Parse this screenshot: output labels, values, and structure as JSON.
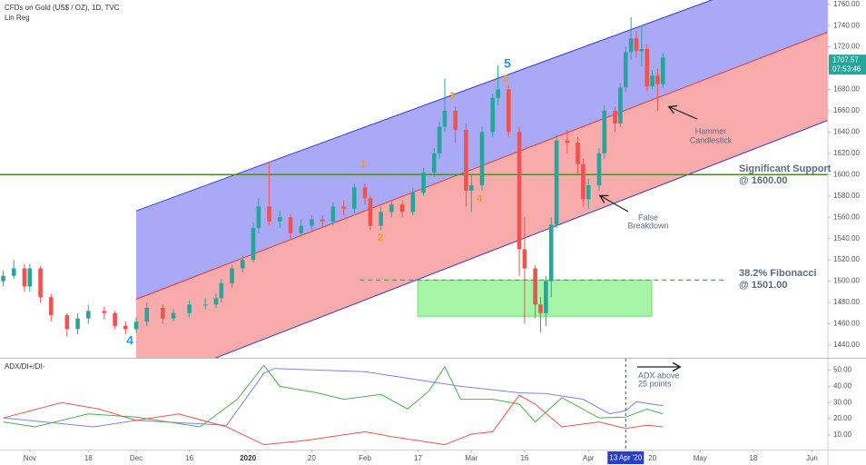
{
  "chart_data": [
    {
      "type": "candlestick",
      "title": "CFDs on Gold (US$ / OZ), 1D, TVC",
      "indicator": "Lin Reg",
      "xlim": [
        -5.6,
        150
      ],
      "ylim": [
        1428,
        1764
      ],
      "yticks": [
        {
          "value": 1440,
          "label": "1440.00"
        },
        {
          "value": 1460,
          "label": "1460.00"
        },
        {
          "value": 1480,
          "label": "1480.00"
        },
        {
          "value": 1500,
          "label": "1500.00"
        },
        {
          "value": 1520,
          "label": "1520.00"
        },
        {
          "value": 1540,
          "label": "1540.00"
        },
        {
          "value": 1560,
          "label": "1560.00"
        },
        {
          "value": 1580,
          "label": "1580.00"
        },
        {
          "value": 1600,
          "label": "1600.00"
        },
        {
          "value": 1620,
          "label": "1620.00"
        },
        {
          "value": 1640,
          "label": "1640.00"
        },
        {
          "value": 1660,
          "label": "1660.00"
        },
        {
          "value": 1680,
          "label": "1680.00"
        },
        {
          "value": 1700,
          "label": "1700.00"
        },
        {
          "value": 1720,
          "label": "1720.00"
        },
        {
          "value": 1740,
          "label": "1740.00"
        },
        {
          "value": 1760,
          "label": "1760.00"
        }
      ],
      "up_color": "#26a69a",
      "down_color": "#ef5350",
      "x": [
        -5,
        -3,
        -1,
        0,
        2,
        4,
        7,
        9,
        11,
        14,
        16,
        18,
        20,
        22,
        25,
        27,
        30,
        33,
        35,
        36,
        38,
        40,
        42,
        43,
        45,
        47,
        49,
        51,
        53,
        55,
        57,
        59,
        61,
        63,
        64,
        66,
        68,
        70,
        72,
        74,
        76,
        77,
        78,
        80,
        82,
        83,
        85,
        87,
        88,
        90,
        92,
        93,
        95,
        96,
        97,
        98,
        99,
        101,
        103,
        104,
        105,
        107,
        108,
        110,
        111,
        112,
        113,
        114,
        115,
        116,
        117,
        118,
        119
      ],
      "open": [
        1500,
        1505,
        1512,
        1495,
        1512,
        1485,
        1468,
        1455,
        1465,
        1472,
        1470,
        1458,
        1455,
        1462,
        1475,
        1465,
        1470,
        1478,
        1478,
        1484,
        1498,
        1512,
        1520,
        1550,
        1570,
        1556,
        1560,
        1545,
        1552,
        1558,
        1556,
        1570,
        1568,
        1588,
        1578,
        1552,
        1565,
        1572,
        1565,
        1583,
        1602,
        1620,
        1645,
        1660,
        1642,
        1585,
        1590,
        1640,
        1672,
        1680,
        1640,
        1530,
        1512,
        1478,
        1470,
        1500,
        1553,
        1632,
        1630,
        1610,
        1577,
        1590,
        1620,
        1660,
        1648,
        1682,
        1715,
        1728,
        1716,
        1718,
        1683,
        1693,
        1685
      ],
      "high": [
        1510,
        1520,
        1516,
        1516,
        1514,
        1488,
        1470,
        1470,
        1478,
        1476,
        1472,
        1462,
        1466,
        1480,
        1478,
        1474,
        1482,
        1484,
        1488,
        1502,
        1515,
        1524,
        1555,
        1578,
        1611,
        1566,
        1563,
        1558,
        1562,
        1562,
        1574,
        1576,
        1592,
        1592,
        1580,
        1570,
        1576,
        1576,
        1588,
        1606,
        1625,
        1650,
        1690,
        1664,
        1648,
        1600,
        1645,
        1676,
        1703,
        1684,
        1645,
        1560,
        1515,
        1485,
        1505,
        1560,
        1638,
        1642,
        1635,
        1615,
        1596,
        1625,
        1665,
        1664,
        1686,
        1720,
        1748,
        1735,
        1740,
        1722,
        1698,
        1700,
        1714
      ],
      "low": [
        1495,
        1502,
        1490,
        1490,
        1480,
        1462,
        1448,
        1450,
        1460,
        1464,
        1455,
        1450,
        1452,
        1458,
        1460,
        1462,
        1466,
        1474,
        1475,
        1480,
        1494,
        1508,
        1518,
        1545,
        1552,
        1550,
        1540,
        1542,
        1548,
        1550,
        1552,
        1562,
        1564,
        1572,
        1548,
        1548,
        1560,
        1560,
        1562,
        1580,
        1598,
        1615,
        1640,
        1630,
        1570,
        1565,
        1585,
        1635,
        1665,
        1635,
        1505,
        1460,
        1465,
        1452,
        1458,
        1485,
        1550,
        1620,
        1600,
        1570,
        1568,
        1585,
        1615,
        1640,
        1645,
        1678,
        1708,
        1710,
        1702,
        1678,
        1680,
        1660,
        1682
      ],
      "close": [
        1505,
        1512,
        1495,
        1512,
        1485,
        1468,
        1455,
        1465,
        1472,
        1470,
        1458,
        1455,
        1462,
        1475,
        1465,
        1470,
        1478,
        1478,
        1484,
        1498,
        1512,
        1520,
        1550,
        1570,
        1556,
        1560,
        1545,
        1552,
        1558,
        1556,
        1570,
        1568,
        1588,
        1578,
        1552,
        1565,
        1572,
        1565,
        1583,
        1602,
        1620,
        1645,
        1660,
        1642,
        1585,
        1590,
        1640,
        1672,
        1680,
        1640,
        1530,
        1512,
        1478,
        1470,
        1500,
        1553,
        1632,
        1630,
        1610,
        1577,
        1590,
        1620,
        1660,
        1648,
        1682,
        1715,
        1728,
        1716,
        1718,
        1683,
        1693,
        1685,
        1710
      ],
      "channel": {
        "x": [
          20,
          150
        ],
        "upper": [
          1566,
          1804
        ],
        "middle": [
          1483,
          1734
        ],
        "lower": [
          1399,
          1651
        ],
        "upper_fill": "#a9a9f6",
        "lower_fill": "#f7abab",
        "edge_color": "#3c3cd0",
        "middle_color": "#e53935"
      },
      "levels": [
        {
          "value": 1600,
          "color": "#4e8a2c",
          "dashed": false
        },
        {
          "value": 1501,
          "color": "#6f8f6f",
          "dashed": true,
          "x": [
            62,
            131
          ]
        }
      ],
      "zone": {
        "x": [
          72.9,
          116.9
        ],
        "y": [
          1467,
          1501
        ],
        "color": "#9cf39c"
      },
      "last_price": 1707.57,
      "countdown": "07:53:46",
      "price_tag_color": "#26a69a",
      "wave_labels": [
        "1",
        "2",
        "3",
        "4",
        "5",
        "4",
        "5"
      ],
      "annotations": [
        "Significant Support",
        "@ 1600.00",
        "38.2% Fibonacci",
        "@ 1501.00",
        "Hammer",
        "Candlestick",
        "False",
        "Breakdown"
      ]
    },
    {
      "type": "line",
      "title": "ADX/DI+/DI-",
      "xlim": [
        -5.6,
        150
      ],
      "ylim": [
        1,
        57
      ],
      "yticks": [
        {
          "value": 10,
          "label": "10.00"
        },
        {
          "value": 20,
          "label": "20.00"
        },
        {
          "value": 30,
          "label": "30.00"
        },
        {
          "value": 40,
          "label": "40.00"
        },
        {
          "value": 50,
          "label": "50.00"
        }
      ],
      "xticks": [
        {
          "value": 0,
          "label": "Nov"
        },
        {
          "value": 11,
          "label": "18"
        },
        {
          "value": 20,
          "label": "Dec"
        },
        {
          "value": 30,
          "label": "16"
        },
        {
          "value": 41,
          "label": "2020"
        },
        {
          "value": 53,
          "label": "20"
        },
        {
          "value": 63,
          "label": "Feb"
        },
        {
          "value": 73,
          "label": "17"
        },
        {
          "value": 83,
          "label": "Mar"
        },
        {
          "value": 93,
          "label": "16"
        },
        {
          "value": 105,
          "label": "Apr"
        },
        {
          "value": 117,
          "label": "20"
        },
        {
          "value": 126,
          "label": "May"
        },
        {
          "value": 136,
          "label": "18"
        },
        {
          "value": 147,
          "label": "Jun"
        }
      ],
      "series": [
        {
          "color": "#7b83eb",
          "x": [
            -5,
            12,
            20,
            37,
            44,
            46,
            63,
            73,
            81,
            92,
            97,
            104,
            109,
            112,
            114,
            119
          ],
          "values": [
            20.5,
            15,
            19,
            16,
            48,
            51,
            49,
            44,
            40,
            36,
            35.5,
            32,
            23,
            25,
            30.5,
            28
          ]
        },
        {
          "color": "#4caf50",
          "x": [
            -5,
            1,
            11,
            20,
            32,
            39,
            44,
            47,
            54,
            59,
            66,
            71,
            75,
            78,
            81,
            87,
            92,
            95,
            100,
            107,
            112,
            116,
            119
          ],
          "values": [
            18,
            15,
            23,
            21,
            15,
            32,
            53,
            40,
            36,
            32,
            35,
            26,
            37,
            52,
            32,
            32,
            29,
            18,
            33,
            20.5,
            21,
            26,
            23
          ]
        },
        {
          "color": "#ef5350",
          "x": [
            -5,
            6,
            13,
            20,
            28,
            37,
            44,
            52,
            63,
            68,
            78,
            83,
            87,
            92,
            95,
            100,
            107,
            112,
            116,
            119
          ],
          "values": [
            20.5,
            30,
            26,
            19,
            23,
            15,
            4,
            6.7,
            12,
            9,
            4,
            10.5,
            12,
            34.5,
            29,
            15,
            18,
            14,
            16,
            15
          ]
        }
      ],
      "crosshair": {
        "x": 112,
        "label": "13 Apr '20",
        "color": "#2a3ec9"
      },
      "annotations": [
        "ADX above",
        "25 points"
      ]
    }
  ]
}
